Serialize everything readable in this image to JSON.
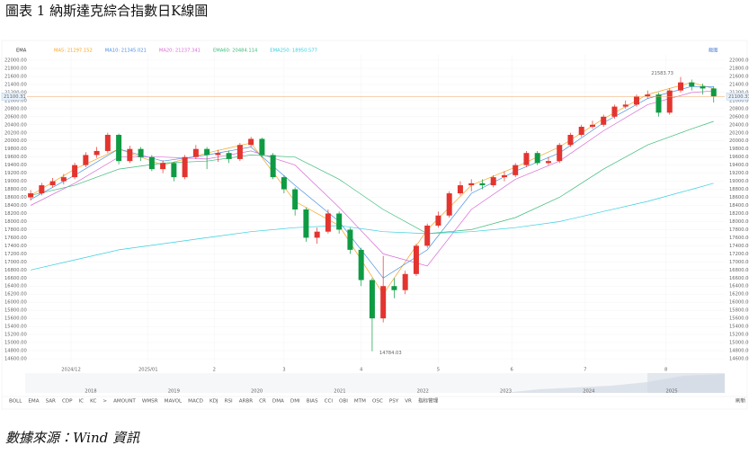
{
  "header": {
    "title": "圖表 1 納斯達克綜合指數日K線圖"
  },
  "chart_data": {
    "type": "candlestick",
    "indicator": "EMA",
    "screenshot_button": "截图",
    "up_color": "#e3342f",
    "down_color": "#0e9b43",
    "grid": true,
    "xlim": [
      0,
      190
    ],
    "xticks": [
      {
        "value": 12,
        "label": "2024/12"
      },
      {
        "value": 33,
        "label": "2025/01"
      },
      {
        "value": 51,
        "label": "2"
      },
      {
        "value": 70,
        "label": "3"
      },
      {
        "value": 91,
        "label": "4"
      },
      {
        "value": 112,
        "label": "5"
      },
      {
        "value": 132,
        "label": "6"
      },
      {
        "value": 152,
        "label": "7"
      },
      {
        "value": 174,
        "label": "8"
      }
    ],
    "ylim": [
      14600,
      22000
    ],
    "yticks": [
      {
        "value": 14600,
        "label": "14600.00"
      },
      {
        "value": 14800,
        "label": "14800.00"
      },
      {
        "value": 15000,
        "label": "15000.00"
      },
      {
        "value": 15200,
        "label": "15200.00"
      },
      {
        "value": 15400,
        "label": "15400.00"
      },
      {
        "value": 15600,
        "label": "15600.00"
      },
      {
        "value": 15800,
        "label": "15800.00"
      },
      {
        "value": 16000,
        "label": "16000.00"
      },
      {
        "value": 16200,
        "label": "16200.00"
      },
      {
        "value": 16400,
        "label": "16400.00"
      },
      {
        "value": 16600,
        "label": "16600.00"
      },
      {
        "value": 16800,
        "label": "16800.00"
      },
      {
        "value": 17000,
        "label": "17000.00"
      },
      {
        "value": 17200,
        "label": "17200.00"
      },
      {
        "value": 17400,
        "label": "17400.00"
      },
      {
        "value": 17600,
        "label": "17600.00"
      },
      {
        "value": 17800,
        "label": "17800.00"
      },
      {
        "value": 18000,
        "label": "18000.00"
      },
      {
        "value": 18200,
        "label": "18200.00"
      },
      {
        "value": 18400,
        "label": "18400.00"
      },
      {
        "value": 18600,
        "label": "18600.00"
      },
      {
        "value": 18800,
        "label": "18800.00"
      },
      {
        "value": 19000,
        "label": "19000.00"
      },
      {
        "value": 19200,
        "label": "19200.00"
      },
      {
        "value": 19400,
        "label": "19400.00"
      },
      {
        "value": 19600,
        "label": "19600.00"
      },
      {
        "value": 19800,
        "label": "19800.00"
      },
      {
        "value": 20000,
        "label": "20000.00"
      },
      {
        "value": 20200,
        "label": "20200.00"
      },
      {
        "value": 20400,
        "label": "20400.00"
      },
      {
        "value": 20600,
        "label": "20600.00"
      },
      {
        "value": 20800,
        "label": "20800.00"
      },
      {
        "value": 21000,
        "label": "21000.00"
      },
      {
        "value": 21200,
        "label": "21200.00"
      },
      {
        "value": 21400,
        "label": "21400.00"
      },
      {
        "value": 21600,
        "label": "21600.00"
      },
      {
        "value": 21800,
        "label": "21800.00"
      },
      {
        "value": 22000,
        "label": "22000.00"
      }
    ],
    "x": [
      1,
      4,
      7,
      10,
      13,
      16,
      19,
      22,
      25,
      28,
      31,
      34,
      37,
      40,
      43,
      46,
      49,
      52,
      55,
      58,
      61,
      64,
      67,
      70,
      73,
      76,
      79,
      82,
      85,
      88,
      91,
      94,
      97,
      100,
      103,
      106,
      109,
      112,
      115,
      118,
      121,
      124,
      127,
      130,
      133,
      136,
      139,
      142,
      145,
      148,
      151,
      154,
      157,
      160,
      163,
      166,
      169,
      172,
      175,
      178,
      181,
      184,
      187
    ],
    "open": [
      18600,
      18700,
      18900,
      19000,
      19100,
      19400,
      19650,
      19750,
      20150,
      19500,
      19800,
      19600,
      19300,
      19450,
      19100,
      19600,
      19800,
      19650,
      19700,
      19550,
      19900,
      20050,
      19650,
      19100,
      18800,
      18300,
      17600,
      17750,
      18200,
      17800,
      17300,
      16550,
      15600,
      16400,
      16300,
      16700,
      17400,
      17900,
      18150,
      18700,
      18900,
      18950,
      18900,
      19100,
      19150,
      19400,
      19700,
      19450,
      19500,
      19900,
      20150,
      20350,
      20400,
      20600,
      20850,
      20900,
      21100,
      21150,
      20700,
      21250,
      21450,
      21350,
      21300
    ],
    "high": [
      18780,
      18960,
      19080,
      19180,
      19460,
      19720,
      19850,
      20200,
      20180,
      19880,
      19850,
      19650,
      19520,
      19480,
      19650,
      19900,
      19850,
      19780,
      19760,
      19950,
      20100,
      20080,
      19700,
      19150,
      18850,
      18350,
      17850,
      18300,
      18250,
      17850,
      17350,
      16600,
      17150,
      16600,
      16780,
      17450,
      17950,
      18250,
      18750,
      19000,
      19050,
      19050,
      19150,
      19250,
      19450,
      19750,
      19750,
      19600,
      19950,
      20200,
      20400,
      20500,
      20650,
      20900,
      21000,
      21150,
      21250,
      21200,
      21300,
      21583.73,
      21520,
      21420,
      21350
    ],
    "low": [
      18520,
      18650,
      18850,
      18920,
      19050,
      19350,
      19580,
      19700,
      19420,
      19450,
      19500,
      19250,
      19200,
      19000,
      19050,
      19550,
      19300,
      19480,
      19450,
      19500,
      19850,
      19600,
      19050,
      18700,
      18150,
      17500,
      17450,
      17700,
      17700,
      17200,
      16400,
      14784.03,
      15500,
      16100,
      16200,
      16650,
      17350,
      17850,
      18100,
      18650,
      18750,
      18800,
      18850,
      19000,
      19100,
      19350,
      19400,
      19400,
      19450,
      19850,
      20100,
      20300,
      20350,
      20550,
      20800,
      20850,
      21050,
      20600,
      20650,
      21200,
      21250,
      21150,
      20950
    ],
    "close": [
      18700,
      18900,
      19000,
      19100,
      19400,
      19650,
      19750,
      20150,
      19500,
      19800,
      19600,
      19300,
      19450,
      19100,
      19600,
      19800,
      19650,
      19700,
      19550,
      19900,
      20050,
      19650,
      19100,
      18800,
      18300,
      17600,
      17750,
      18200,
      17800,
      17300,
      16550,
      15600,
      16400,
      16300,
      16700,
      17400,
      17900,
      18150,
      18700,
      18900,
      18950,
      18900,
      19100,
      19150,
      19400,
      19700,
      19450,
      19500,
      19900,
      20150,
      20350,
      20400,
      20600,
      20850,
      20900,
      21100,
      21150,
      20700,
      21250,
      21450,
      21350,
      21300,
      21100.31
    ],
    "series": [
      {
        "name": "MA5: 21297.152",
        "color": "#f5a623",
        "x": [
          1,
          13,
          25,
          37,
          49,
          61,
          73,
          85,
          97,
          109,
          121,
          133,
          145,
          157,
          169,
          181,
          187
        ],
        "values": [
          18650,
          19300,
          19800,
          19400,
          19700,
          19950,
          18500,
          17900,
          16200,
          17800,
          18900,
          19350,
          19850,
          20550,
          21150,
          21450,
          21297
        ]
      },
      {
        "name": "MA10: 21345.021",
        "color": "#4a90e2",
        "x": [
          1,
          13,
          25,
          37,
          49,
          61,
          73,
          85,
          97,
          109,
          121,
          133,
          145,
          157,
          169,
          181,
          187
        ],
        "values": [
          18550,
          19150,
          19800,
          19500,
          19650,
          19850,
          18900,
          18000,
          16600,
          17300,
          18700,
          19250,
          19700,
          20450,
          21050,
          21350,
          21345
        ]
      },
      {
        "name": "MA20: 21237.341",
        "color": "#d96bd6",
        "x": [
          1,
          13,
          25,
          37,
          49,
          61,
          73,
          85,
          97,
          109,
          121,
          133,
          145,
          157,
          169,
          181,
          187
        ],
        "values": [
          18400,
          18950,
          19600,
          19600,
          19550,
          19750,
          19400,
          18350,
          17200,
          16900,
          18300,
          19050,
          19500,
          20250,
          20900,
          21200,
          21237
        ]
      },
      {
        "name": "EMA60: 20484.114",
        "color": "#3dbb7a",
        "x": [
          1,
          13,
          25,
          37,
          49,
          61,
          73,
          85,
          97,
          109,
          121,
          133,
          145,
          157,
          169,
          181,
          187
        ],
        "values": [
          18650,
          18900,
          19300,
          19450,
          19500,
          19650,
          19600,
          19050,
          18300,
          17700,
          17800,
          18100,
          18600,
          19300,
          19900,
          20300,
          20484
        ]
      },
      {
        "name": "EMA250: 18950.577",
        "color": "#36cfe0",
        "x": [
          1,
          13,
          25,
          37,
          49,
          61,
          73,
          85,
          97,
          109,
          121,
          133,
          145,
          157,
          169,
          181,
          187
        ],
        "values": [
          16800,
          17050,
          17300,
          17450,
          17600,
          17750,
          17850,
          17900,
          17750,
          17700,
          17750,
          17850,
          18000,
          18250,
          18500,
          18800,
          18950
        ]
      }
    ],
    "navigator_years": [
      "2018",
      "2019",
      "2020",
      "2021",
      "2022",
      "2023",
      "2024",
      "2025"
    ],
    "indicator_tabs": [
      "BOLL",
      "EMA",
      "SAR",
      "CDP",
      "IC",
      "KC",
      ">",
      "AMOUNT",
      "WMSR",
      "MAVOL",
      "MACD",
      "KDJ",
      "RSI",
      "ARBR",
      "CR",
      "DMA",
      "DMI",
      "BIAS",
      "CCI",
      "OBI",
      "MTM",
      "OSC",
      "PSY",
      "VR",
      "指标管理"
    ],
    "refresh": "刷新"
  },
  "footer": {
    "source": "數據來源：Wind 資訊"
  }
}
